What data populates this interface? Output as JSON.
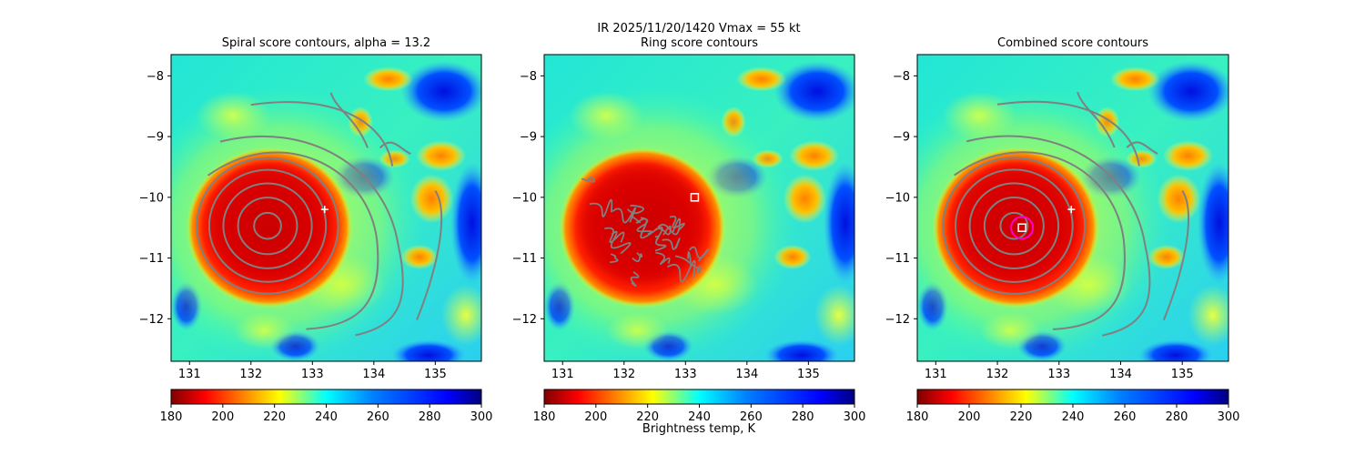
{
  "figure": {
    "suptitle_line1": "IR  2025/11/20/1420    Vmax = 55 kt",
    "colorbar_label": "Brightness temp, K"
  },
  "chart_data": [
    {
      "type": "heatmap",
      "title": "Spiral score contours, alpha = 13.2",
      "xlim": [
        130.7,
        135.75
      ],
      "ylim": [
        -12.7,
        -7.65
      ],
      "x_ticks": [
        "131",
        "132",
        "133",
        "134",
        "135"
      ],
      "y_ticks": [
        "−8",
        "−9",
        "−10",
        "−11",
        "−12"
      ],
      "colorscale": "jet_r",
      "color_range": [
        180,
        300
      ],
      "colorbar_ticks": [
        "180",
        "200",
        "220",
        "240",
        "260",
        "280",
        "300"
      ],
      "storm_center": [
        132.3,
        -10.5
      ],
      "markers": [
        {
          "kind": "plus",
          "x": 133.2,
          "y": -10.2,
          "color": "#ffffff"
        }
      ],
      "contour_color": "#808080",
      "contour_style": "spiral"
    },
    {
      "type": "heatmap",
      "title": "Ring score contours",
      "xlim": [
        130.7,
        135.75
      ],
      "ylim": [
        -12.7,
        -7.65
      ],
      "x_ticks": [
        "131",
        "132",
        "133",
        "134",
        "135"
      ],
      "y_ticks": [
        "−8",
        "−9",
        "−10",
        "−11",
        "−12"
      ],
      "colorscale": "jet_r",
      "color_range": [
        180,
        300
      ],
      "colorbar_ticks": [
        "180",
        "200",
        "220",
        "240",
        "260",
        "280",
        "300"
      ],
      "storm_center": [
        132.3,
        -10.5
      ],
      "markers": [
        {
          "kind": "square",
          "x": 133.15,
          "y": -10.0,
          "color": "#ffffff"
        }
      ],
      "contour_color": "#808080",
      "contour_style": "ring"
    },
    {
      "type": "heatmap",
      "title": "Combined score contours",
      "xlim": [
        130.7,
        135.75
      ],
      "ylim": [
        -12.7,
        -7.65
      ],
      "x_ticks": [
        "131",
        "132",
        "133",
        "134",
        "135"
      ],
      "y_ticks": [
        "−8",
        "−9",
        "−10",
        "−11",
        "−12"
      ],
      "colorscale": "jet_r",
      "color_range": [
        180,
        300
      ],
      "colorbar_ticks": [
        "180",
        "200",
        "220",
        "240",
        "260",
        "280",
        "300"
      ],
      "storm_center": [
        132.3,
        -10.5
      ],
      "markers": [
        {
          "kind": "plus",
          "x": 133.2,
          "y": -10.2,
          "color": "#ffffff"
        },
        {
          "kind": "square",
          "x": 132.4,
          "y": -10.5,
          "color": "#ffffff"
        },
        {
          "kind": "circle",
          "x": 132.4,
          "y": -10.5,
          "color": "#ff00cc"
        }
      ],
      "contour_color": "#808080",
      "contour_style": "spiral"
    }
  ]
}
